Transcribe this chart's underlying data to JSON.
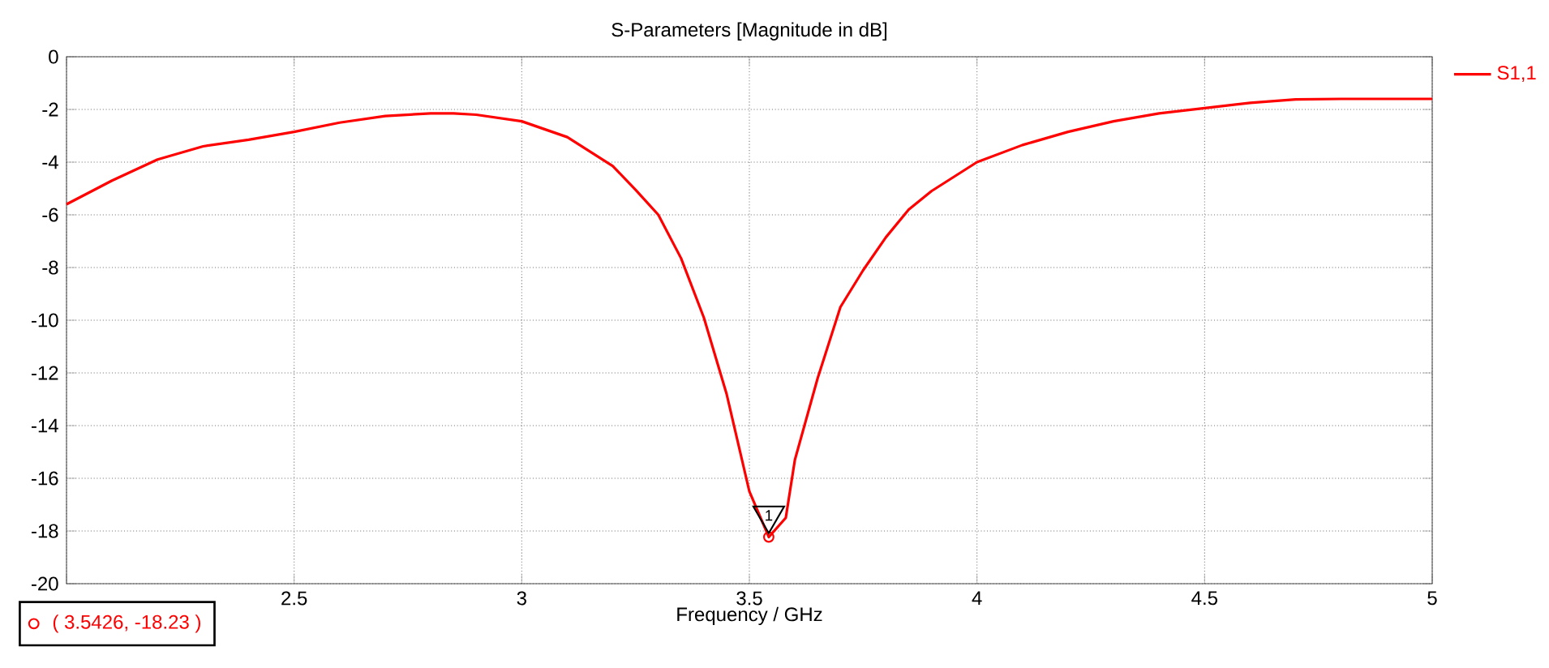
{
  "chart_data": {
    "type": "line",
    "title": "S-Parameters [Magnitude in dB]",
    "xlabel": "Frequency / GHz",
    "xlim": [
      2,
      5
    ],
    "ylim": [
      -20,
      0
    ],
    "xticks": [
      {
        "value": 2,
        "label": null
      },
      2.5,
      3,
      3.5,
      4,
      4.5,
      5
    ],
    "yticks": [
      -20,
      -18,
      -16,
      -14,
      -12,
      -10,
      -8,
      -6,
      -4,
      -2,
      0
    ],
    "grid": true,
    "legend": "top right",
    "line_style": "solid",
    "marker": "none",
    "series": [
      {
        "name": "S1,1",
        "color": "#ff0000",
        "x": [
          2.0,
          2.1,
          2.2,
          2.3,
          2.4,
          2.5,
          2.6,
          2.7,
          2.8,
          2.85,
          2.9,
          3.0,
          3.1,
          3.2,
          3.25,
          3.3,
          3.35,
          3.4,
          3.45,
          3.5,
          3.5426,
          3.58,
          3.6,
          3.65,
          3.7,
          3.75,
          3.8,
          3.85,
          3.9,
          4.0,
          4.1,
          4.2,
          4.3,
          4.4,
          4.5,
          4.6,
          4.7,
          4.8,
          4.9,
          5.0
        ],
        "values": [
          -5.6,
          -4.7,
          -3.9,
          -3.4,
          -3.15,
          -2.85,
          -2.5,
          -2.25,
          -2.15,
          -2.15,
          -2.2,
          -2.45,
          -3.05,
          -4.15,
          -5.05,
          -6.0,
          -7.65,
          -9.9,
          -12.8,
          -16.5,
          -18.23,
          -17.5,
          -15.3,
          -12.2,
          -9.5,
          -8.1,
          -6.85,
          -5.8,
          -5.1,
          -4.0,
          -3.35,
          -2.85,
          -2.45,
          -2.15,
          -1.95,
          -1.75,
          -1.62,
          -1.6,
          -1.6,
          -1.6
        ]
      }
    ],
    "annotations": [
      {
        "text": "1",
        "x": 3.5426,
        "y": -18.23
      },
      "( 3.5426, -18.23 )"
    ]
  }
}
